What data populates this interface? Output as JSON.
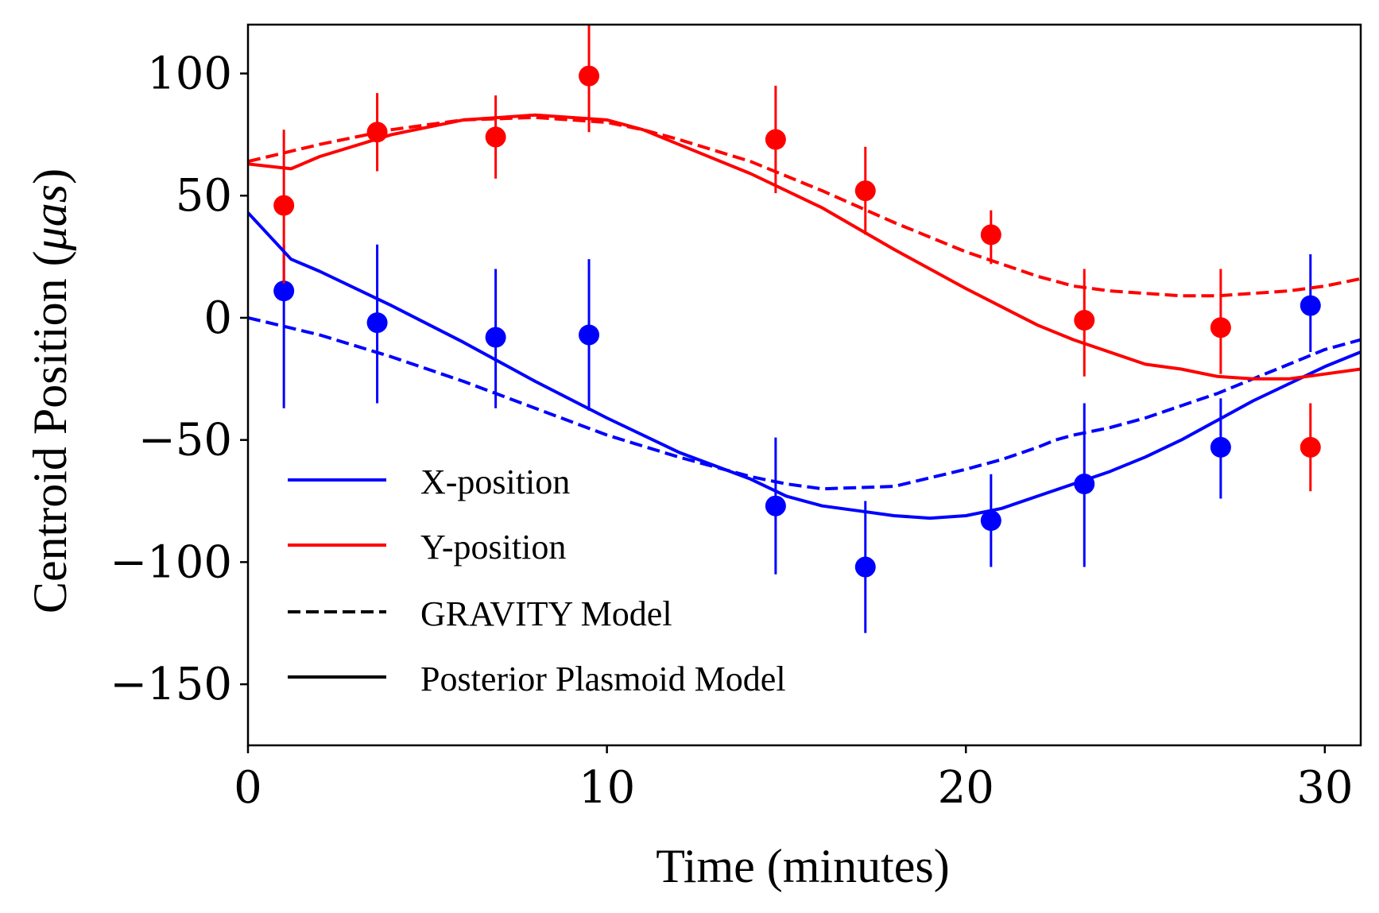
{
  "chart_data": {
    "type": "line",
    "title": "",
    "xlabel": "Time (minutes)",
    "ylabel": "Centroid Position (μas)",
    "ylabel_prefix": "Centroid Position (",
    "ylabel_unit": "μas",
    "ylabel_suffix": ")",
    "xlim": [
      0,
      31
    ],
    "ylim": [
      -175,
      120
    ],
    "xticks": [
      0,
      10,
      20,
      30
    ],
    "yticks": [
      100,
      50,
      0,
      -50,
      -100,
      -150
    ],
    "xtick_labels": [
      "0",
      "10",
      "20",
      "30"
    ],
    "ytick_labels": [
      "100",
      "50",
      "0",
      "−50",
      "−100",
      "−150"
    ],
    "legend_position": "lower-left",
    "legend": [
      {
        "label": "X-position",
        "color": "#0000ff",
        "style": "solid"
      },
      {
        "label": "Y-position",
        "color": "#ff0000",
        "style": "solid"
      },
      {
        "label": "GRAVITY Model",
        "color": "#000000",
        "style": "dashed"
      },
      {
        "label": "Posterior Plasmoid Model",
        "color": "#000000",
        "style": "solid"
      }
    ],
    "series": [
      {
        "name": "X-position data",
        "kind": "errorbar",
        "color": "#0000ff",
        "x": [
          1.0,
          3.6,
          6.9,
          9.5,
          14.7,
          17.2,
          20.7,
          23.3,
          27.1,
          29.6
        ],
        "y": [
          11,
          -2,
          -8,
          -7,
          -77,
          -102,
          -83,
          -68,
          -53,
          5
        ],
        "yerr_low": [
          -37,
          -35,
          -37,
          -38,
          -105,
          -129,
          -102,
          -102,
          -74,
          -14
        ],
        "yerr_high": [
          30,
          30,
          20,
          24,
          -49,
          -75,
          -64,
          -35,
          -33,
          26
        ]
      },
      {
        "name": "Y-position data",
        "kind": "errorbar",
        "color": "#ff0000",
        "x": [
          1.0,
          3.6,
          6.9,
          9.5,
          14.7,
          17.2,
          20.7,
          23.3,
          27.1,
          29.6
        ],
        "y": [
          46,
          76,
          74,
          99,
          73,
          52,
          34,
          -1,
          -4,
          -53
        ],
        "yerr_low": [
          14,
          60,
          57,
          76,
          51,
          34,
          22,
          -24,
          -23,
          -71
        ],
        "yerr_high": [
          77,
          92,
          91,
          120,
          95,
          70,
          44,
          20,
          20,
          -35
        ]
      },
      {
        "name": "X GRAVITY Model",
        "kind": "line",
        "style": "dashed",
        "color": "#0000ff",
        "x": [
          0,
          2,
          4,
          6,
          8,
          10,
          12,
          14,
          15,
          16,
          18,
          20,
          21,
          22,
          22.5,
          23,
          24,
          25,
          26,
          27,
          28,
          29,
          30,
          31
        ],
        "y": [
          0,
          -7,
          -16,
          -26,
          -37,
          -48,
          -57,
          -65,
          -68,
          -70,
          -69,
          -62,
          -58,
          -53,
          -50,
          -48,
          -45,
          -41,
          -36,
          -31,
          -25,
          -19,
          -13,
          -9
        ]
      },
      {
        "name": "Y GRAVITY Model",
        "kind": "line",
        "style": "dashed",
        "color": "#ff0000",
        "x": [
          0,
          2,
          4,
          6,
          8,
          10,
          11,
          12,
          14,
          16,
          18,
          20,
          21,
          22,
          23,
          24,
          25,
          26,
          27,
          28,
          29,
          30,
          31
        ],
        "y": [
          64,
          71,
          77,
          81,
          82,
          80,
          77,
          73,
          64,
          52,
          39,
          27,
          22,
          17,
          13,
          11,
          10,
          9,
          9,
          10,
          11,
          13,
          16
        ]
      },
      {
        "name": "X Posterior Plasmoid Model",
        "kind": "line",
        "style": "solid",
        "color": "#0000ff",
        "x": [
          0,
          1.2,
          2,
          4,
          6,
          8,
          10,
          12,
          14,
          15,
          16,
          17,
          18,
          19,
          20,
          21,
          22,
          23,
          24,
          25,
          26,
          27,
          28,
          29,
          30,
          31
        ],
        "y": [
          43,
          24,
          19,
          5,
          -10,
          -26,
          -41,
          -55,
          -66,
          -73,
          -77,
          -79,
          -81,
          -82,
          -81,
          -78,
          -73,
          -68,
          -63,
          -57,
          -50,
          -42,
          -34,
          -27,
          -20,
          -14
        ]
      },
      {
        "name": "Y Posterior Plasmoid Model",
        "kind": "line",
        "style": "solid",
        "color": "#ff0000",
        "x": [
          0,
          1.2,
          2,
          4,
          6,
          8,
          10,
          11,
          12,
          14,
          16,
          18,
          20,
          22,
          23,
          24,
          25,
          26,
          27,
          28,
          29,
          30,
          31
        ],
        "y": [
          63,
          61,
          66,
          75,
          81,
          83,
          81,
          77,
          71,
          59,
          45,
          28,
          12,
          -3,
          -9,
          -14,
          -19,
          -21,
          -24,
          -25,
          -25,
          -23,
          -21
        ]
      }
    ]
  }
}
